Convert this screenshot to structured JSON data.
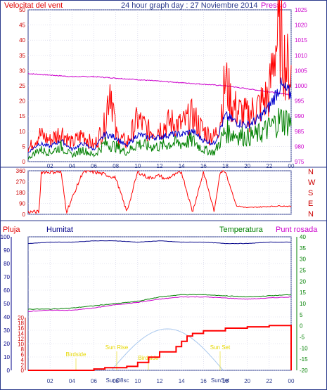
{
  "header": {
    "title": "24 hour graph day : 27 Noviembre 2014",
    "left_label": "Velocitat del vent",
    "right_label": "Pressió"
  },
  "colors": {
    "frame": "#2b3a8c",
    "wind": "#ff0000",
    "wind_avg": "#0000cc",
    "wind_dir": "#ff0000",
    "gust_low": "#008000",
    "pressure": "#cc00cc",
    "humidity": "#000088",
    "temperature": "#008000",
    "dewpoint": "#cc00cc",
    "rain": "#ff0000",
    "sun": "#a9c8ee",
    "sun_labels": "#e6d800"
  },
  "panel_top": {
    "left_ticks": [
      "0",
      "5",
      "10",
      "15",
      "20",
      "25",
      "30",
      "35",
      "40",
      "45",
      "50"
    ],
    "right_ticks": [
      "975",
      "980",
      "985",
      "990",
      "995",
      "1000",
      "1005",
      "1010",
      "1015",
      "1020",
      "1025"
    ],
    "x_ticks": [
      "02",
      "04",
      "06",
      "08",
      "10",
      "12",
      "14",
      "16",
      "18",
      "20",
      "22",
      "00"
    ]
  },
  "panel_mid": {
    "left_ticks": [
      "0",
      "90",
      "180",
      "270",
      "360"
    ],
    "dir_labels": [
      "N",
      "W",
      "S",
      "E",
      "N"
    ]
  },
  "panel_bottom": {
    "labels": {
      "rain": "Pluja",
      "humidity": "Humitat",
      "temperature": "Temperatura",
      "dewpoint": "Punt rosada"
    },
    "rain_ticks": [
      "0",
      "2",
      "4",
      "6",
      "8",
      "10",
      "12",
      "14",
      "16",
      "18",
      "20"
    ],
    "hum_ticks": [
      "0",
      "10",
      "20",
      "30",
      "40",
      "50",
      "60",
      "70",
      "80",
      "90",
      "100"
    ],
    "temp_ticks": [
      "-20",
      "-15",
      "-10",
      "-5",
      "0",
      "5",
      "10",
      "15",
      "20",
      "25",
      "30",
      "35",
      "40"
    ],
    "x_ticks": [
      "02",
      "04",
      "06",
      "08",
      "10",
      "12",
      "14",
      "16",
      "18",
      "20",
      "22",
      "00"
    ],
    "sun_labels": {
      "birdside": "Birdside",
      "sun_rise": "Sun Rise",
      "birdside2": "Birdside",
      "sun_set": "Sun Set",
      "sun_08sc": "SunO8sc",
      "sun_set_bottom": "SunSet"
    }
  },
  "chart_data": [
    {
      "type": "line",
      "title": "24 hour graph day : 27 Noviembre 2014",
      "x_unit": "hour",
      "xlim": [
        0,
        24
      ],
      "y_left_label": "Velocitat del vent",
      "ylim_left": [
        0,
        50
      ],
      "y_right_label": "Pressió",
      "ylim_right": [
        975,
        1025
      ],
      "series": [
        {
          "name": "Pressió",
          "axis": "right",
          "x": [
            0,
            2,
            4,
            6,
            8,
            10,
            12,
            14,
            16,
            18,
            20,
            22,
            23,
            24
          ],
          "values": [
            1004,
            1003.5,
            1003,
            1003,
            1002.5,
            1002,
            1001.5,
            1001,
            1000.5,
            1000,
            999,
            998,
            997.5,
            997
          ]
        },
        {
          "axis": "left",
          "x": [
            0,
            1,
            2,
            3,
            4,
            5,
            6,
            7,
            7.5,
            8,
            9,
            10,
            11,
            12,
            13,
            14,
            15,
            16,
            17,
            17.5,
            18,
            18.5,
            19,
            20,
            21,
            22,
            22.5,
            23,
            23.5,
            24
          ],
          "values": [
            4,
            9,
            7,
            10,
            6,
            9,
            5,
            12,
            27,
            9,
            6,
            14,
            10,
            11,
            13,
            12,
            15,
            10,
            8,
            13,
            27,
            20,
            17,
            15,
            18,
            22,
            38,
            41,
            32,
            29
          ]
        },
        {
          "axis": "left",
          "x": [
            0,
            1,
            2,
            3,
            4,
            5,
            6,
            7,
            8,
            9,
            10,
            11,
            12,
            13,
            14,
            15,
            16,
            17,
            18,
            19,
            20,
            21,
            22,
            23,
            24
          ],
          "values": [
            3,
            6,
            5,
            7,
            4,
            6,
            4,
            9,
            8,
            5,
            9,
            8,
            8,
            9,
            9,
            10,
            7,
            6,
            15,
            13,
            12,
            14,
            18,
            25,
            22
          ]
        },
        {
          "axis": "left",
          "x": [
            0,
            1,
            2,
            3,
            4,
            5,
            6,
            7,
            8,
            9,
            10,
            11,
            12,
            13,
            14,
            15,
            16,
            17,
            18,
            19,
            20,
            21,
            22,
            23,
            24
          ],
          "values": [
            1,
            4,
            3,
            5,
            2,
            4,
            2,
            6,
            5,
            3,
            6,
            5,
            5,
            6,
            6,
            7,
            4,
            3,
            10,
            9,
            8,
            9,
            11,
            14,
            13
          ]
        }
      ]
    },
    {
      "type": "line",
      "x_unit": "hour",
      "xlim": [
        0,
        24
      ],
      "ylim": [
        0,
        360
      ],
      "y_tick_labels": [
        "N",
        "W",
        "S",
        "E",
        "N"
      ],
      "series": [
        {
          "axis": "left",
          "x": [
            0,
            1,
            1.2,
            3,
            3.5,
            5,
            6,
            7,
            8,
            9,
            10,
            11,
            12,
            12.5,
            13,
            14,
            15,
            16,
            17,
            17.5,
            18,
            19,
            20,
            21,
            22,
            23,
            24
          ],
          "values": [
            20,
            20,
            350,
            350,
            20,
            350,
            350,
            330,
            300,
            20,
            350,
            300,
            320,
            290,
            310,
            350,
            20,
            350,
            20,
            350,
            360,
            70,
            55,
            60,
            65,
            70,
            65
          ]
        }
      ]
    },
    {
      "type": "line",
      "x_unit": "hour",
      "xlim": [
        0,
        24
      ],
      "y_labels": {
        "rain": "Pluja",
        "humidity": "Humitat",
        "temperature": "Temperatura",
        "dewpoint": "Punt rosada"
      },
      "ylim_rain": [
        0,
        20
      ],
      "ylim_humidity": [
        0,
        100
      ],
      "ylim_temperature": [
        -20,
        40
      ],
      "series": [
        {
          "name": "Humitat",
          "axis": "humidity",
          "x": [
            0,
            2,
            4,
            6,
            8,
            10,
            12,
            14,
            16,
            18,
            20,
            22,
            24
          ],
          "values": [
            95,
            96,
            96,
            97,
            97,
            96,
            97,
            96,
            96,
            95,
            95,
            96,
            96
          ]
        },
        {
          "name": "Temperatura",
          "axis": "temperature",
          "x": [
            0,
            2,
            4,
            6,
            8,
            10,
            12,
            14,
            16,
            18,
            20,
            22,
            24
          ],
          "values": [
            7.5,
            7.5,
            8,
            9,
            10,
            11,
            13,
            14,
            14,
            13.5,
            13,
            13.5,
            14
          ]
        },
        {
          "name": "Punt rosada",
          "axis": "temperature",
          "x": [
            0,
            2,
            4,
            6,
            8,
            10,
            12,
            14,
            16,
            18,
            20,
            22,
            24
          ],
          "values": [
            6.5,
            7,
            7,
            8,
            9.5,
            10.5,
            12,
            13,
            13,
            12.5,
            12,
            12.5,
            13
          ]
        },
        {
          "name": "Pluja",
          "axis": "rain",
          "x": [
            0,
            5,
            6,
            6.5,
            7,
            8,
            9,
            9.5,
            10,
            11,
            12,
            13,
            13.5,
            14,
            14.5,
            15,
            16,
            18,
            19,
            20,
            22,
            24,
            24
          ],
          "values": [
            0,
            0,
            0.5,
            0.5,
            1,
            1,
            1.5,
            1.5,
            3,
            5,
            7,
            7,
            9,
            11,
            13,
            14,
            15,
            16,
            16,
            16.5,
            17,
            17,
            0
          ]
        }
      ]
    }
  ]
}
